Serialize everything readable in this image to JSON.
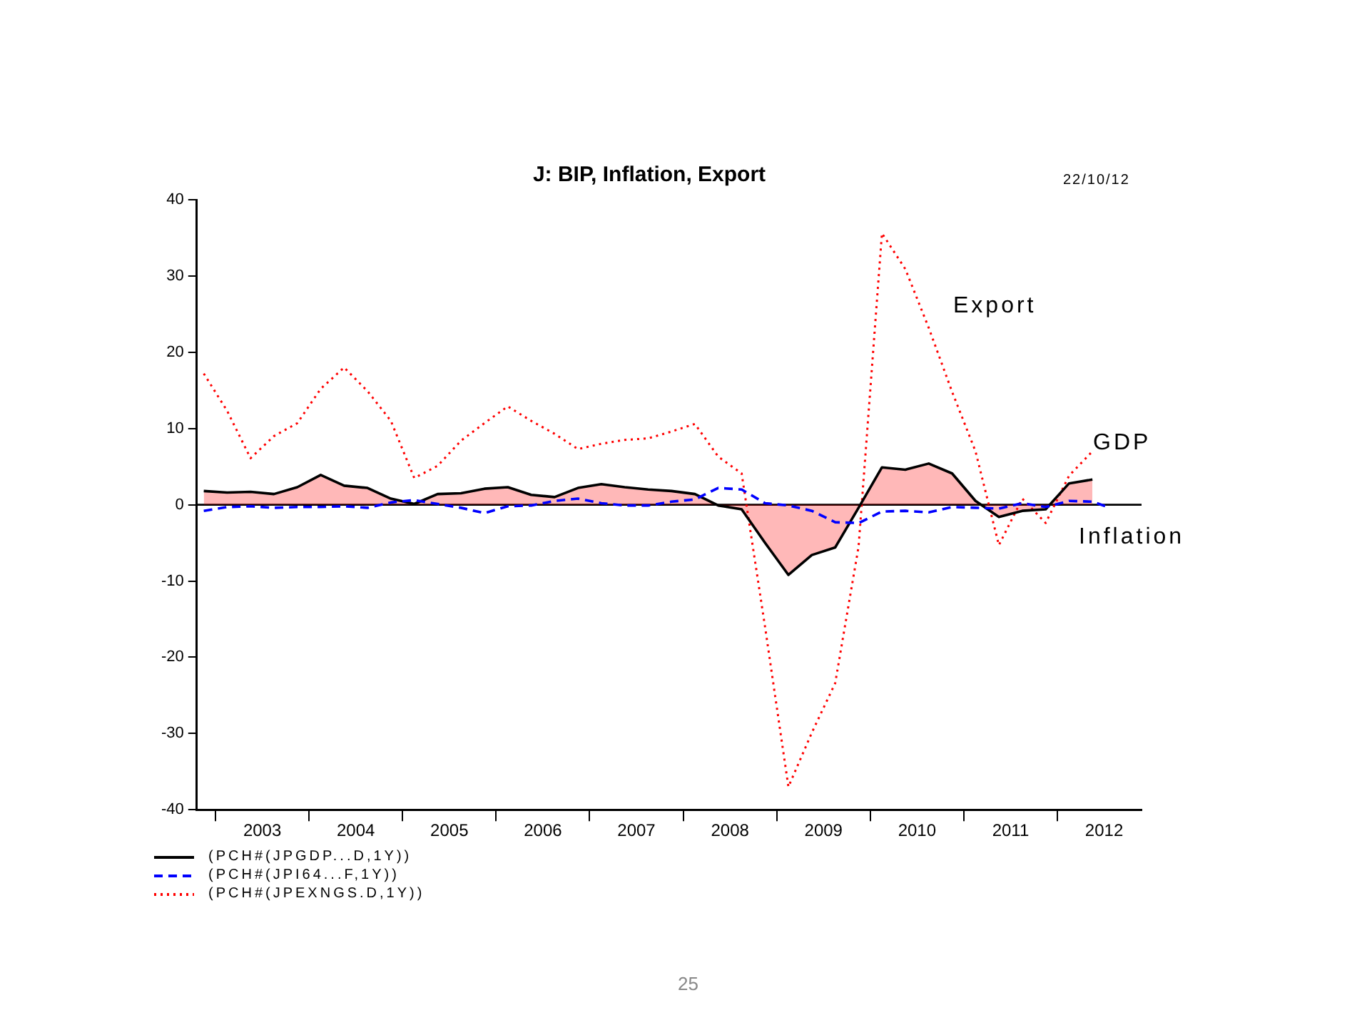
{
  "chart_data": {
    "type": "line",
    "title": "J: BIP, Inflation, Export",
    "x": [
      2002.875,
      2003.125,
      2003.375,
      2003.625,
      2003.875,
      2004.125,
      2004.375,
      2004.625,
      2004.875,
      2005.125,
      2005.375,
      2005.625,
      2005.875,
      2006.125,
      2006.375,
      2006.625,
      2006.875,
      2007.125,
      2007.375,
      2007.625,
      2007.875,
      2008.125,
      2008.375,
      2008.625,
      2008.875,
      2009.125,
      2009.375,
      2009.625,
      2009.875,
      2010.125,
      2010.375,
      2010.625,
      2010.875,
      2011.125,
      2011.375,
      2011.625,
      2011.875,
      2012.125,
      2012.375
    ],
    "series": [
      {
        "name": "(PCH#(JPGDP...D,1Y))",
        "type": "area",
        "color": "#000000",
        "line_style": "solid",
        "values": [
          1.8,
          1.6,
          1.7,
          1.4,
          2.3,
          3.9,
          2.5,
          2.2,
          0.8,
          0.1,
          1.4,
          1.5,
          2.1,
          2.3,
          1.3,
          1.0,
          2.2,
          2.7,
          2.3,
          2.0,
          1.8,
          1.4,
          -0.1,
          -0.6,
          -5.0,
          -9.2,
          -6.6,
          -5.6,
          -0.4,
          4.9,
          4.6,
          5.4,
          4.1,
          0.5,
          -1.6,
          -0.8,
          -0.6,
          2.8,
          3.3
        ]
      },
      {
        "name": "(PCH#(JPI64...F,1Y))",
        "color": "#0000ff",
        "line_style": "dashed",
        "x": [
          2002.875,
          2003.125,
          2003.375,
          2003.625,
          2003.875,
          2004.125,
          2004.375,
          2004.625,
          2004.875,
          2005.125,
          2005.375,
          2005.625,
          2005.875,
          2006.125,
          2006.375,
          2006.625,
          2006.875,
          2007.125,
          2007.375,
          2007.625,
          2007.875,
          2008.125,
          2008.375,
          2008.625,
          2008.875,
          2009.125,
          2009.375,
          2009.625,
          2009.875,
          2010.125,
          2010.375,
          2010.625,
          2010.875,
          2011.125,
          2011.375,
          2011.625,
          2011.875,
          2012.125,
          2012.375,
          2012.54
        ],
        "values": [
          -0.8,
          -0.3,
          -0.2,
          -0.4,
          -0.3,
          -0.3,
          -0.2,
          -0.4,
          0.3,
          0.6,
          0.1,
          -0.4,
          -1.1,
          -0.2,
          -0.1,
          0.5,
          0.8,
          0.2,
          -0.1,
          -0.1,
          0.4,
          0.7,
          2.2,
          2.0,
          0.2,
          -0.1,
          -0.8,
          -2.3,
          -2.4,
          -0.9,
          -0.8,
          -1.0,
          -0.3,
          -0.4,
          -0.5,
          0.2,
          -0.3,
          0.5,
          0.4,
          -0.3
        ]
      },
      {
        "name": "(PCH#(JPEXNGS.D,1Y))",
        "color": "#ff0000",
        "line_style": "dotted",
        "values": [
          17.2,
          12.3,
          6.1,
          9.0,
          10.7,
          15.2,
          18.0,
          14.9,
          11.0,
          3.5,
          5.1,
          8.4,
          10.7,
          12.9,
          11.0,
          9.3,
          7.3,
          8.0,
          8.5,
          8.7,
          9.6,
          10.6,
          6.3,
          4.1,
          -16,
          -37.0,
          -29.9,
          -23.4,
          -5.5,
          35.6,
          30.9,
          23.2,
          14.8,
          7.0,
          -5.3,
          0.8,
          -2.4,
          3.8,
          7.0
        ]
      }
    ],
    "xlim": [
      2002.8,
      2012.9
    ],
    "xticks": [
      {
        "value": 2003,
        "label": null
      },
      {
        "value": 2003.5,
        "label": "2003"
      },
      {
        "value": 2004,
        "label": null
      },
      {
        "value": 2004.5,
        "label": "2004"
      },
      {
        "value": 2005,
        "label": null
      },
      {
        "value": 2005.5,
        "label": "2005"
      },
      {
        "value": 2006,
        "label": null
      },
      {
        "value": 2006.5,
        "label": "2006"
      },
      {
        "value": 2007,
        "label": null
      },
      {
        "value": 2007.5,
        "label": "2007"
      },
      {
        "value": 2008,
        "label": null
      },
      {
        "value": 2008.5,
        "label": "2008"
      },
      {
        "value": 2009,
        "label": null
      },
      {
        "value": 2009.5,
        "label": "2009"
      },
      {
        "value": 2010,
        "label": null
      },
      {
        "value": 2010.5,
        "label": "2010"
      },
      {
        "value": 2011,
        "label": null
      },
      {
        "value": 2011.5,
        "label": "2011"
      },
      {
        "value": 2012,
        "label": null
      },
      {
        "value": 2012.5,
        "label": "2012"
      }
    ],
    "ylim": [
      -40,
      40
    ],
    "yticks": [
      -40,
      -30,
      -20,
      -10,
      0,
      10,
      20,
      30,
      40
    ],
    "ref_lines": [
      {
        "axis": "y",
        "value": 0,
        "color": "#000000"
      }
    ],
    "legend": "bottom left",
    "annotations": [
      "22/10/12",
      "25",
      "Export",
      "GDP",
      "Inflation"
    ]
  }
}
